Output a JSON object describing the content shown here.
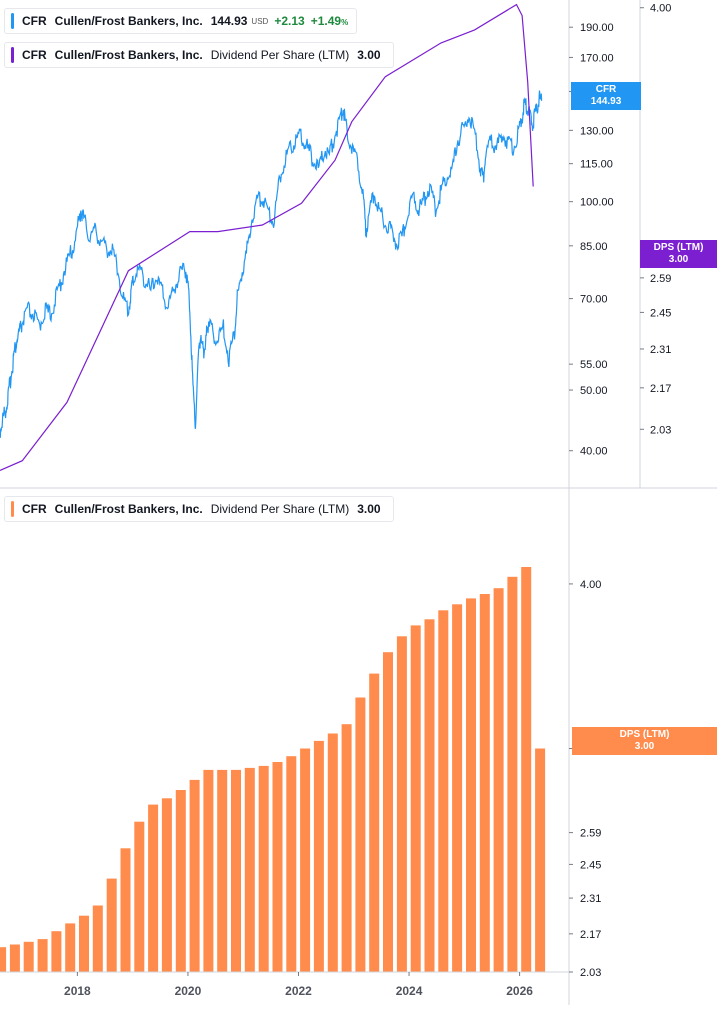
{
  "legends": {
    "price": {
      "symbol": "CFR",
      "name": "Cullen/Frost Bankers, Inc.",
      "value": "144.93",
      "currency": "USD",
      "change": "+2.13",
      "change_pct": "+1.49",
      "pct_unit": "%",
      "color": "#2196f3"
    },
    "dps_top": {
      "symbol": "CFR",
      "name": "Cullen/Frost Bankers, Inc.",
      "metric": "Dividend Per Share (LTM)",
      "value": "3.00",
      "color": "#7b1fd1"
    },
    "dps_bottom": {
      "symbol": "CFR",
      "name": "Cullen/Frost Bankers, Inc.",
      "metric": "Dividend Per Share (LTM)",
      "value": "3.00",
      "color": "#ff8c4d"
    }
  },
  "tags": {
    "price": {
      "line1": "CFR",
      "line2": "144.93"
    },
    "dps_top": {
      "line1": "DPS (LTM)",
      "line2": "3.00"
    },
    "dps_bottom": {
      "line1": "DPS (LTM)",
      "line2": "3.00"
    }
  },
  "chart_data": [
    {
      "type": "line",
      "name": "price_panel",
      "price_axis": {
        "scale": "log",
        "range": [
          35,
          210
        ],
        "ticks": [
          "190.00",
          "170.00",
          "150.00",
          "130.00",
          "115.00",
          "100.00",
          "85.00",
          "70.00",
          "55.00",
          "50.00",
          "40.00"
        ]
      },
      "dps_axis": {
        "scale": "log",
        "range": [
          1.85,
          4.05
        ],
        "ticks": [
          "4.00",
          "2.59",
          "2.45",
          "2.31",
          "2.17",
          "2.03"
        ]
      },
      "x_range": [
        2016.7,
        2026.55
      ],
      "series": [
        {
          "name": "CFR",
          "color": "#2196f3",
          "points": [
            [
              2016.7,
              43
            ],
            [
              2016.75,
              45
            ],
            [
              2016.8,
              46.5
            ],
            [
              2016.85,
              49
            ],
            [
              2016.9,
              53
            ],
            [
              2016.95,
              57
            ],
            [
              2017.0,
              60
            ],
            [
              2017.05,
              62
            ],
            [
              2017.1,
              64
            ],
            [
              2017.2,
              67
            ],
            [
              2017.3,
              66
            ],
            [
              2017.4,
              63
            ],
            [
              2017.5,
              67
            ],
            [
              2017.6,
              66
            ],
            [
              2017.7,
              70
            ],
            [
              2017.8,
              75
            ],
            [
              2017.9,
              80
            ],
            [
              2018.0,
              84
            ],
            [
              2018.1,
              92
            ],
            [
              2018.15,
              97
            ],
            [
              2018.2,
              94
            ],
            [
              2018.3,
              88
            ],
            [
              2018.4,
              90
            ],
            [
              2018.5,
              87
            ],
            [
              2018.6,
              84
            ],
            [
              2018.7,
              84
            ],
            [
              2018.8,
              79
            ],
            [
              2018.9,
              70
            ],
            [
              2019.0,
              67
            ],
            [
              2019.05,
              72
            ],
            [
              2019.1,
              76
            ],
            [
              2019.2,
              78
            ],
            [
              2019.3,
              75
            ],
            [
              2019.4,
              72
            ],
            [
              2019.5,
              76
            ],
            [
              2019.6,
              72
            ],
            [
              2019.7,
              68
            ],
            [
              2019.8,
              72
            ],
            [
              2019.9,
              76
            ],
            [
              2020.0,
              79
            ],
            [
              2020.05,
              76
            ],
            [
              2020.1,
              68
            ],
            [
              2020.15,
              52
            ],
            [
              2020.2,
              44
            ],
            [
              2020.25,
              56
            ],
            [
              2020.3,
              62
            ],
            [
              2020.35,
              56
            ],
            [
              2020.4,
              64
            ],
            [
              2020.5,
              62
            ],
            [
              2020.6,
              60
            ],
            [
              2020.7,
              63
            ],
            [
              2020.8,
              56
            ],
            [
              2020.9,
              62
            ],
            [
              2020.95,
              70
            ],
            [
              2021.0,
              75
            ],
            [
              2021.1,
              81
            ],
            [
              2021.2,
              93
            ],
            [
              2021.3,
              100
            ],
            [
              2021.4,
              102
            ],
            [
              2021.5,
              97
            ],
            [
              2021.6,
              93
            ],
            [
              2021.7,
              108
            ],
            [
              2021.8,
              117
            ],
            [
              2021.9,
              122
            ],
            [
              2022.0,
              126
            ],
            [
              2022.1,
              127
            ],
            [
              2022.2,
              122
            ],
            [
              2022.3,
              117
            ],
            [
              2022.4,
              112
            ],
            [
              2022.5,
              121
            ],
            [
              2022.6,
              119
            ],
            [
              2022.7,
              128
            ],
            [
              2022.8,
              136
            ],
            [
              2022.85,
              141
            ],
            [
              2022.9,
              132
            ],
            [
              2023.0,
              122
            ],
            [
              2023.1,
              116
            ],
            [
              2023.2,
              103
            ],
            [
              2023.25,
              89
            ],
            [
              2023.3,
              95
            ],
            [
              2023.4,
              103
            ],
            [
              2023.5,
              96
            ],
            [
              2023.6,
              93
            ],
            [
              2023.7,
              90
            ],
            [
              2023.8,
              86
            ],
            [
              2023.9,
              88
            ],
            [
              2024.0,
              95
            ],
            [
              2024.1,
              103
            ],
            [
              2024.2,
              97
            ],
            [
              2024.3,
              101
            ],
            [
              2024.4,
              106
            ],
            [
              2024.5,
              97
            ],
            [
              2024.6,
              104
            ],
            [
              2024.7,
              110
            ],
            [
              2024.8,
              112
            ],
            [
              2024.9,
              126
            ],
            [
              2025.0,
              131
            ],
            [
              2025.1,
              137
            ],
            [
              2025.2,
              128
            ],
            [
              2025.3,
              114
            ],
            [
              2025.35,
              108
            ],
            [
              2025.4,
              120
            ],
            [
              2025.5,
              125
            ],
            [
              2025.6,
              122
            ],
            [
              2025.7,
              128
            ],
            [
              2025.8,
              124
            ],
            [
              2025.9,
              122
            ],
            [
              2026.0,
              130
            ],
            [
              2026.05,
              137
            ],
            [
              2026.1,
              143
            ],
            [
              2026.15,
              140
            ],
            [
              2026.2,
              136
            ],
            [
              2026.25,
              133
            ],
            [
              2026.3,
              140
            ],
            [
              2026.35,
              146
            ],
            [
              2026.4,
              144.93
            ]
          ]
        },
        {
          "name": "DPS (LTM)",
          "color": "#7b1fd1",
          "points": [
            [
              2016.7,
              1.9
            ],
            [
              2017.1,
              1.93
            ],
            [
              2017.9,
              2.12
            ],
            [
              2019.0,
              2.62
            ],
            [
              2020.1,
              2.79
            ],
            [
              2020.6,
              2.79
            ],
            [
              2021.4,
              2.82
            ],
            [
              2022.1,
              2.92
            ],
            [
              2022.7,
              3.13
            ],
            [
              2023.0,
              3.33
            ],
            [
              2023.6,
              3.58
            ],
            [
              2024.6,
              3.78
            ],
            [
              2025.2,
              3.86
            ],
            [
              2025.95,
              4.02
            ],
            [
              2026.05,
              3.95
            ],
            [
              2026.15,
              3.55
            ],
            [
              2026.25,
              3.0
            ]
          ]
        }
      ]
    },
    {
      "type": "bar",
      "name": "dps_panel",
      "y_axis": {
        "scale": "log",
        "range": [
          2.03,
          4.2
        ],
        "ticks": [
          "4.00",
          "3.00",
          "2.59",
          "2.45",
          "2.31",
          "2.17",
          "2.03"
        ]
      },
      "x_range": [
        2016.6,
        2026.55
      ],
      "x_ticks": [
        "2018",
        "2020",
        "2022",
        "2024",
        "2026"
      ],
      "color": "#ff8c4d",
      "categories": [
        "2016-Q3",
        "2016-Q4",
        "2017-Q1",
        "2017-Q2",
        "2017-Q3",
        "2017-Q4",
        "2018-Q1",
        "2018-Q2",
        "2018-Q3",
        "2018-Q4",
        "2019-Q1",
        "2019-Q2",
        "2019-Q3",
        "2019-Q4",
        "2020-Q1",
        "2020-Q2",
        "2020-Q3",
        "2020-Q4",
        "2021-Q1",
        "2021-Q2",
        "2021-Q3",
        "2021-Q4",
        "2022-Q1",
        "2022-Q2",
        "2022-Q3",
        "2022-Q4",
        "2023-Q1",
        "2023-Q2",
        "2023-Q3",
        "2023-Q4",
        "2024-Q1",
        "2024-Q2",
        "2024-Q3",
        "2024-Q4",
        "2025-Q1",
        "2025-Q2",
        "2025-Q3",
        "2025-Q4",
        "2026-Q1",
        "2026-Q2"
      ],
      "x": [
        2016.62,
        2016.87,
        2017.12,
        2017.37,
        2017.62,
        2017.87,
        2018.12,
        2018.37,
        2018.62,
        2018.87,
        2019.12,
        2019.37,
        2019.62,
        2019.87,
        2020.12,
        2020.37,
        2020.62,
        2020.87,
        2021.12,
        2021.37,
        2021.62,
        2021.87,
        2022.12,
        2022.37,
        2022.62,
        2022.87,
        2023.12,
        2023.37,
        2023.62,
        2023.87,
        2024.12,
        2024.37,
        2024.62,
        2024.87,
        2025.12,
        2025.37,
        2025.62,
        2025.87,
        2026.12,
        2026.37
      ],
      "values": [
        2.12,
        2.13,
        2.14,
        2.15,
        2.18,
        2.21,
        2.24,
        2.28,
        2.39,
        2.52,
        2.64,
        2.72,
        2.75,
        2.79,
        2.84,
        2.89,
        2.89,
        2.89,
        2.9,
        2.91,
        2.93,
        2.96,
        3.0,
        3.04,
        3.08,
        3.13,
        3.28,
        3.42,
        3.55,
        3.65,
        3.72,
        3.76,
        3.82,
        3.86,
        3.9,
        3.93,
        3.97,
        4.05,
        4.12,
        3.0
      ]
    }
  ]
}
